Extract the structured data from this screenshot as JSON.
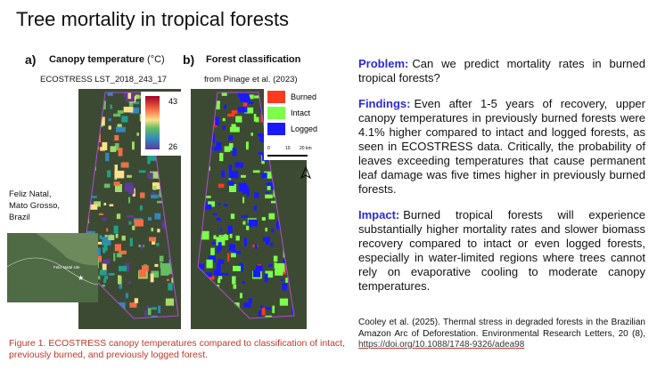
{
  "title": "Tree mortality in tropical forests",
  "panels": [
    {
      "label": "a)",
      "title": "Canopy temperature",
      "unit": "(°C)",
      "subtitle": "ECOSTRESS LST_2018_243_17",
      "colorbar": {
        "max": "43",
        "min": "26"
      }
    },
    {
      "label": "b)",
      "title": "Forest classification",
      "subtitle": "from Pinage et al. (2023)",
      "legend": [
        {
          "name": "Burned",
          "color": "#ff3b1f"
        },
        {
          "name": "Intact",
          "color": "#7cff4a"
        },
        {
          "name": "Logged",
          "color": "#1a1aff"
        }
      ],
      "scale": [
        "0",
        "10",
        "20 km"
      ]
    }
  ],
  "inset": {
    "location": [
      "Feliz Natal,",
      "Mato Grosso,",
      "Brazil"
    ],
    "site": "Feliz Natal site"
  },
  "caption": "Figure 1. ECOSTRESS canopy temperatures compared to classification of intact, previously burned, and previously logged forest.",
  "sections": [
    {
      "heading": "Problem:",
      "body": "Can we predict mortality rates in burned tropical forests?"
    },
    {
      "heading": "Findings:",
      "body": "Even after 1-5 years of recovery, upper canopy temperatures in previously burned forests were 4.1% higher compared to intact and logged forests, as seen in ECOSTRESS data. Critically, the probability of leaves exceeding temperatures that cause permanent leaf damage was five times higher in previously burned forests."
    },
    {
      "heading": "Impact:",
      "body": "Burned tropical forests will experience substantially higher mortality rates and slower biomass recovery compared to intact or even logged forests, especially in water-limited regions where trees cannot rely on evaporative cooling to moderate canopy temperatures."
    }
  ],
  "citation": {
    "text": "Cooley et al. (2025). Thermal stress in degraded forests in the Brazilian Amazon Arc of Deforestation. Environmental Research Letters, 20 (8),",
    "link": "https://doi.org/10.1088/1748-9326/adea98"
  }
}
